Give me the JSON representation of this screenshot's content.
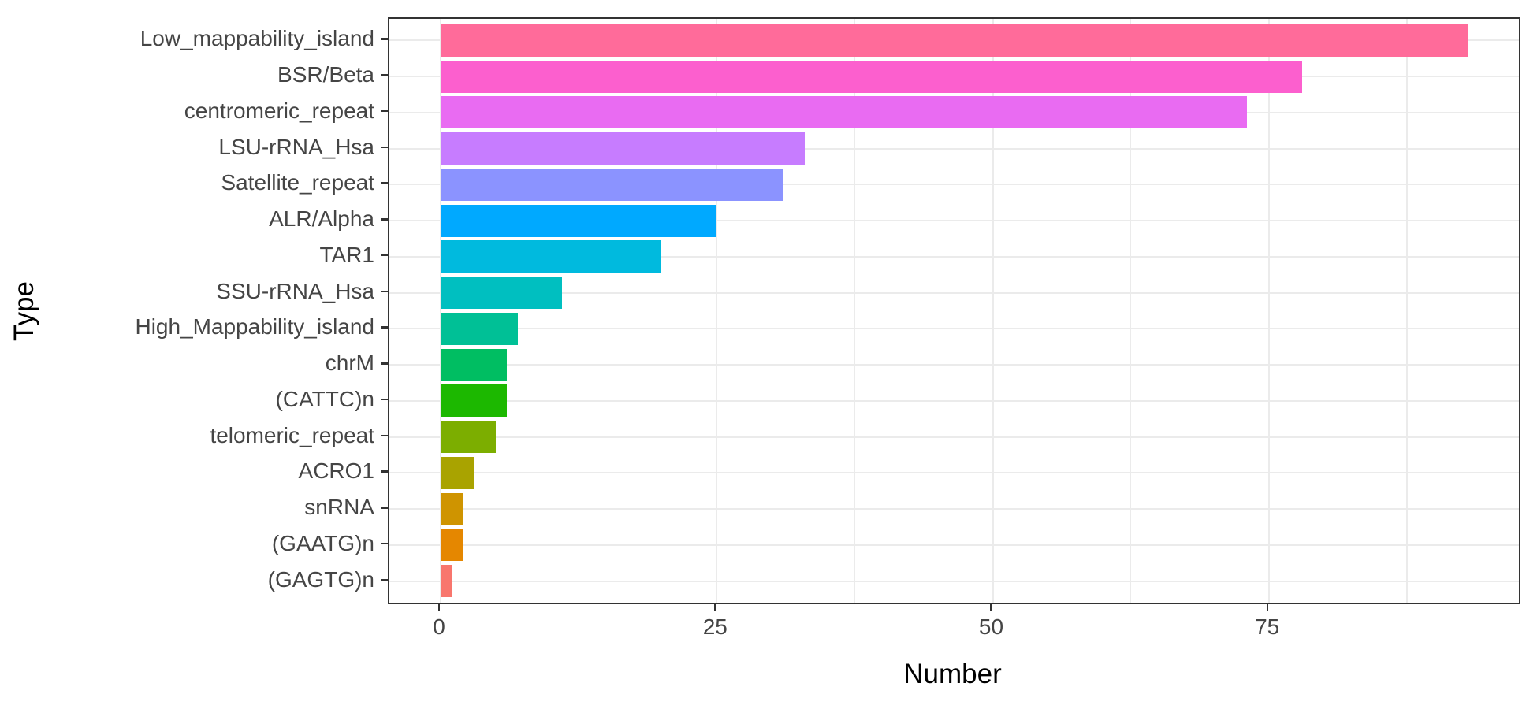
{
  "chart_data": {
    "type": "bar",
    "orientation": "horizontal",
    "title": "",
    "xlabel": "Number",
    "ylabel": "Type",
    "x_tick_labels": [
      "0",
      "25",
      "50",
      "75"
    ],
    "x_ticks": [
      0,
      25,
      50,
      75
    ],
    "x_minor_ticks": [
      12.5,
      37.5,
      62.5,
      87.5
    ],
    "xlim": [
      -4.65,
      97.65
    ],
    "grid": true,
    "legend_position": "none",
    "categories": [
      "Low_mappability_island",
      "BSR/Beta",
      "centromeric_repeat",
      "LSU-rRNA_Hsa",
      "Satellite_repeat",
      "ALR/Alpha",
      "TAR1",
      "SSU-rRNA_Hsa",
      "High_Mappability_island",
      "chrM",
      "(CATTC)n",
      "telomeric_repeat",
      "ACRO1",
      "snRNA",
      "(GAATG)n",
      "(GAGTG)n"
    ],
    "values": [
      93,
      78,
      73,
      33,
      31,
      25,
      20,
      11,
      7,
      6,
      6,
      5,
      3,
      2,
      2,
      1
    ],
    "bar_colors": [
      "#FF6B9A",
      "#FC5FCE",
      "#E96BF2",
      "#C77CFF",
      "#8B93FF",
      "#00A9FF",
      "#00BADE",
      "#00BFC0",
      "#00C096",
      "#00BE62",
      "#1CB800",
      "#7CAE00",
      "#A9A300",
      "#CF9400",
      "#E58700",
      "#F8766D"
    ]
  },
  "theme": {
    "page_bg": "#FFFFFF",
    "panel_bg": "#FFFFFF",
    "panel_border": "#333333",
    "grid_color": "#EBEBEB",
    "tick_color": "#333333",
    "axis_text_color": "#454545",
    "axis_title_color": "#000000"
  }
}
